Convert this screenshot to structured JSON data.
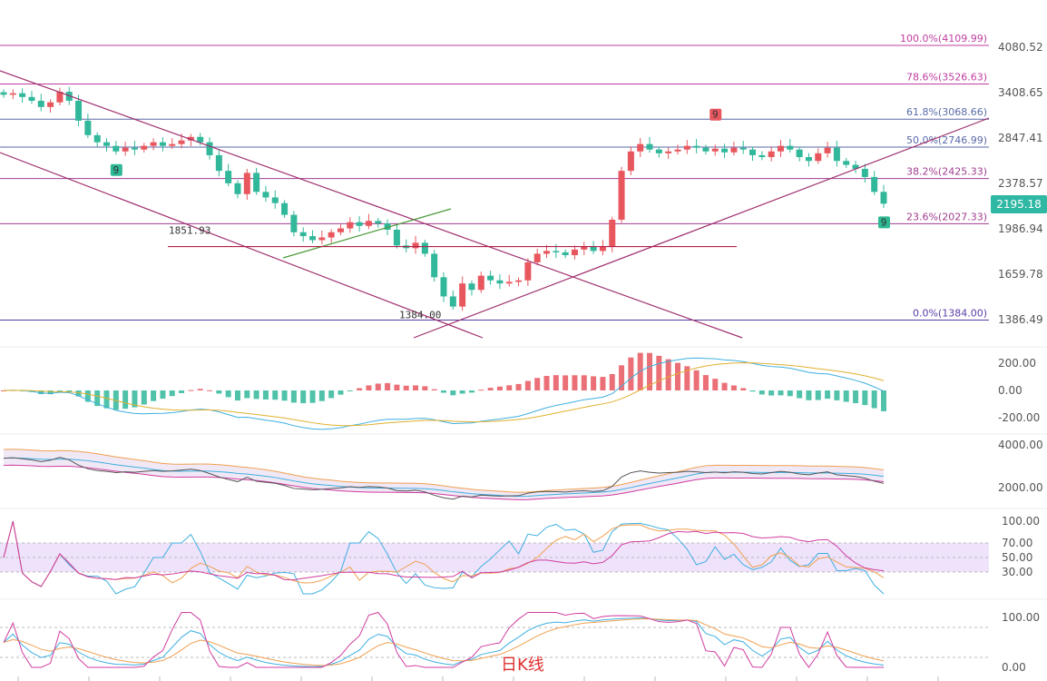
{
  "caption": "日K线",
  "current_price": "2195.18",
  "chart_data": [
    {
      "type": "candlestick",
      "panel": "price",
      "y_ticks": [
        "4080.52",
        "3408.65",
        "2847.41",
        "2378.57",
        "1986.94",
        "1659.78",
        "1386.49"
      ],
      "fib_levels": [
        {
          "label": "100.0%(4109.99)",
          "value": 4109.99,
          "color": "#c03ca0"
        },
        {
          "label": "78.6%(3526.63)",
          "value": 3526.63,
          "color": "#c03ca0"
        },
        {
          "label": "61.8%(3068.66)",
          "value": 3068.66,
          "color": "#5a6aa8"
        },
        {
          "label": "50.0%(2746.99)",
          "value": 2746.99,
          "color": "#5a6aa8"
        },
        {
          "label": "38.2%(2425.33)",
          "value": 2425.33,
          "color": "#a03c90"
        },
        {
          "label": "23.6%(2027.33)",
          "value": 2027.33,
          "color": "#a03c90"
        },
        {
          "label": "0.0%(1384.00)",
          "value": 1384.0,
          "color": "#5a3ca8"
        }
      ],
      "annotations": [
        {
          "text": "1851.93",
          "value": 1851.93
        },
        {
          "text": "1384.00",
          "value": 1384.0
        }
      ],
      "markers": [
        {
          "text": "9",
          "kind": "buy"
        },
        {
          "text": "9",
          "kind": "sell"
        },
        {
          "text": "9",
          "kind": "buy"
        }
      ],
      "close_series": [
        3380,
        3400,
        3350,
        3300,
        3220,
        3280,
        3420,
        3300,
        3050,
        2880,
        2800,
        2760,
        2700,
        2740,
        2720,
        2760,
        2800,
        2760,
        2780,
        2820,
        2860,
        2800,
        2660,
        2500,
        2380,
        2280,
        2480,
        2300,
        2250,
        2200,
        2100,
        1960,
        1930,
        1900,
        1920,
        1960,
        1990,
        2040,
        2010,
        2050,
        2030,
        1980,
        1860,
        1840,
        1880,
        1800,
        1640,
        1520,
        1460,
        1600,
        1560,
        1650,
        1620,
        1600,
        1610,
        1620,
        1740,
        1800,
        1820,
        1810,
        1790,
        1830,
        1850,
        1820,
        1850,
        2060,
        2500,
        2700,
        2780,
        2720,
        2680,
        2700,
        2720,
        2760,
        2740,
        2700,
        2730,
        2690,
        2740,
        2720,
        2660,
        2640,
        2700,
        2760,
        2720,
        2640,
        2600,
        2680,
        2740,
        2600,
        2560,
        2520,
        2440,
        2300,
        2195
      ]
    },
    {
      "type": "histogram",
      "panel": "macd",
      "y_ticks": [
        "200.00",
        "0.00",
        "-200.00"
      ],
      "ylim": [
        -250,
        250
      ]
    },
    {
      "type": "line",
      "panel": "bollinger",
      "y_ticks": [
        "4000.00",
        "2000.00"
      ],
      "ylim": [
        1400,
        4200
      ]
    },
    {
      "type": "line",
      "panel": "rsi",
      "y_ticks": [
        "100.00",
        "70.00",
        "50.00",
        "30.00"
      ],
      "ylim": [
        0,
        100
      ]
    },
    {
      "type": "line",
      "panel": "kdj",
      "y_ticks": [
        "100.00",
        "0.00"
      ],
      "ylim": [
        0,
        110
      ]
    }
  ]
}
